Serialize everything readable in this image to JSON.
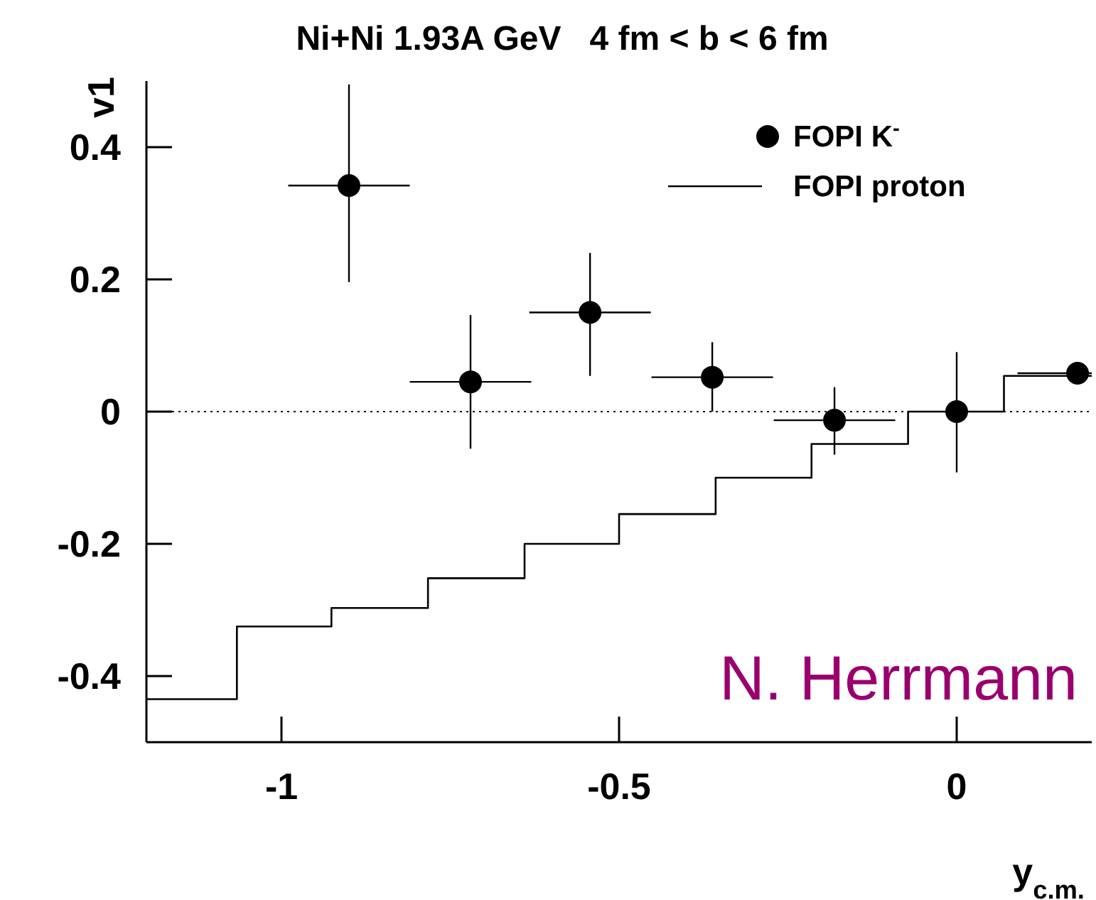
{
  "chart_data": {
    "type": "scatter",
    "title": "Ni+Ni 1.93A GeV   4 fm < b < 6 fm",
    "xlabel": "y$_{c.m.}$",
    "ylabel": "v1",
    "xlim": [
      -1.2,
      0.2
    ],
    "ylim": [
      -0.5,
      0.5
    ],
    "xticks": [
      -1,
      -0.5,
      0
    ],
    "yticks": [
      -0.4,
      -0.2,
      0,
      0.2,
      0.4
    ],
    "grid": false,
    "legend": "top right",
    "ref_lines": [
      {
        "axis": "y",
        "value": 0,
        "line_style": "dotted",
        "color": "#000000"
      }
    ],
    "annotations": [
      "N. Herrmann"
    ],
    "series": [
      {
        "name": "FOPI K$^{-}$",
        "marker": "circle",
        "color": "#000000",
        "x": [
          -0.9,
          -0.72,
          -0.543,
          -0.362,
          -0.181,
          0,
          0.179
        ],
        "values": [
          0.342,
          0.045,
          0.15,
          0.052,
          -0.013,
          0,
          0.058
        ],
        "errors": [
          [
            0.196,
            0.495
          ],
          [
            -0.056,
            0.146
          ],
          [
            0.054,
            0.24
          ],
          [
            0,
            0.105
          ],
          [
            -0.065,
            0.037
          ],
          [
            -0.092,
            0.09
          ],
          null
        ],
        "xerrors": [
          0.09,
          0.09,
          0.09,
          0.09,
          0.09,
          null,
          [
            0.09,
            0.2
          ]
        ]
      },
      {
        "name": "FOPI proton",
        "type": "step",
        "marker": "none",
        "line_style": "solid",
        "color": "#000000",
        "x": [
          -1.2,
          -1.066,
          -0.926,
          -0.783,
          -0.64,
          -0.5,
          -0.357,
          -0.215,
          -0.072,
          0.07,
          0.2
        ],
        "values": [
          -0.435,
          -0.325,
          -0.297,
          -0.252,
          -0.2,
          -0.155,
          -0.1,
          -0.049,
          0,
          0.054,
          0.054
        ]
      }
    ]
  }
}
